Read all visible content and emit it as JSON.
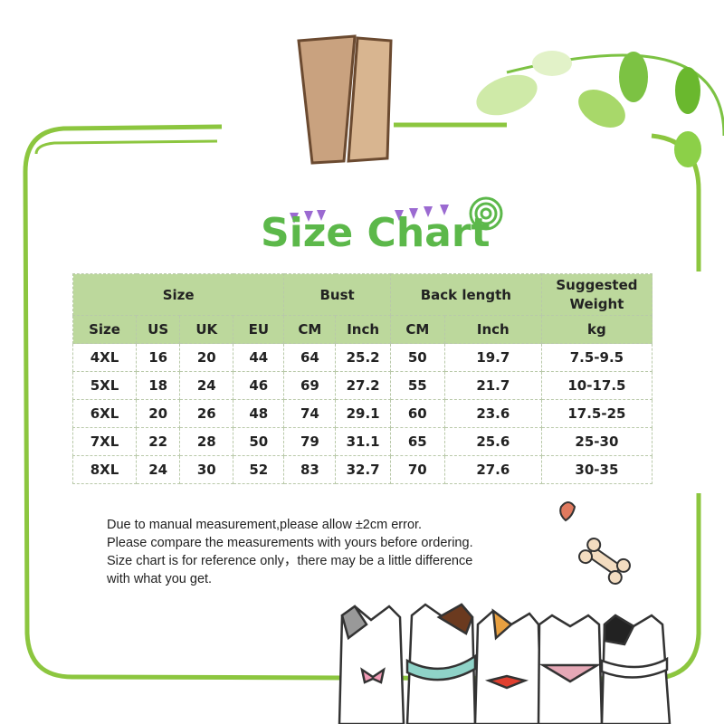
{
  "title": "Size Chart",
  "colors": {
    "title": "#5cb84a",
    "frame": "#8cc63f",
    "header_bg": "#bcd89c",
    "pin": "#c9a27f"
  },
  "table": {
    "group_headers": [
      "Size",
      "Bust",
      "Back length",
      "Suggested Weight"
    ],
    "sub_headers": [
      "Size",
      "US",
      "UK",
      "EU",
      "CM",
      "Inch",
      "CM",
      "Inch",
      "kg"
    ],
    "rows": [
      [
        "4XL",
        "16",
        "20",
        "44",
        "64",
        "25.2",
        "50",
        "19.7",
        "7.5-9.5"
      ],
      [
        "5XL",
        "18",
        "24",
        "46",
        "69",
        "27.2",
        "55",
        "21.7",
        "10-17.5"
      ],
      [
        "6XL",
        "20",
        "26",
        "48",
        "74",
        "29.1",
        "60",
        "23.6",
        "17.5-25"
      ],
      [
        "7XL",
        "22",
        "28",
        "50",
        "79",
        "31.1",
        "65",
        "25.6",
        "25-30"
      ],
      [
        "8XL",
        "24",
        "30",
        "52",
        "83",
        "32.7",
        "70",
        "27.6",
        "30-35"
      ]
    ]
  },
  "notes": [
    "Due to manual measurement,please allow ±2cm error.",
    "Please compare the measurements with yours before ordering.",
    "Size chart is for reference only，there may be a little difference",
    "with what you get."
  ]
}
